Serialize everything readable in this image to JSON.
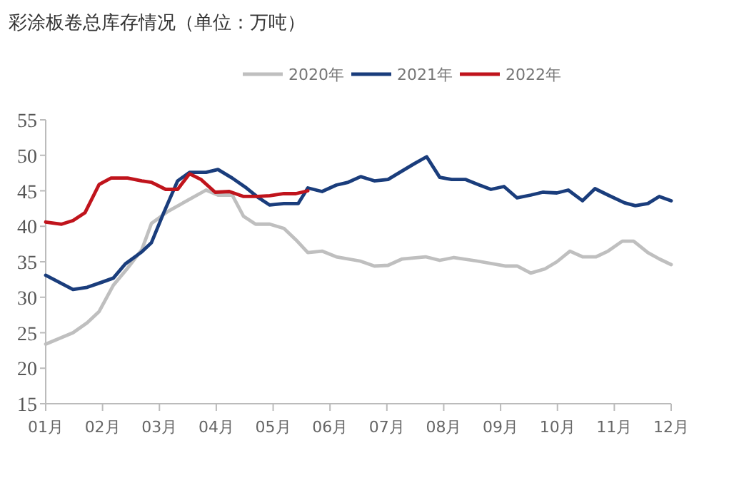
{
  "chart_data": {
    "type": "line",
    "title": "彩涂板卷总库存情况（单位：万吨）",
    "xlim": [
      1,
      12
    ],
    "xticks": [
      {
        "value": 1,
        "label": "01月"
      },
      {
        "value": 2,
        "label": "02月"
      },
      {
        "value": 3,
        "label": "03月"
      },
      {
        "value": 4,
        "label": "04月"
      },
      {
        "value": 5,
        "label": "05月"
      },
      {
        "value": 6,
        "label": "06月"
      },
      {
        "value": 7,
        "label": "07月"
      },
      {
        "value": 8,
        "label": "08月"
      },
      {
        "value": 9,
        "label": "09月"
      },
      {
        "value": 10,
        "label": "10月"
      },
      {
        "value": 11,
        "label": "11月"
      },
      {
        "value": 12,
        "label": "12月"
      }
    ],
    "ylim": [
      15,
      55
    ],
    "yticks": [
      15,
      20,
      25,
      30,
      35,
      40,
      45,
      50,
      55
    ],
    "grid": false,
    "legend": "top",
    "marker": "none",
    "line_style": "solid",
    "series": [
      {
        "name": "2020年",
        "color": "#bfbfbf",
        "x": [
          1.0,
          1.48,
          1.73,
          1.94,
          2.19,
          2.44,
          2.69,
          2.86,
          3.15,
          3.53,
          3.82,
          4.03,
          4.28,
          4.48,
          4.69,
          4.94,
          5.19,
          5.4,
          5.61,
          5.86,
          6.11,
          6.53,
          6.78,
          7.02,
          7.27,
          7.68,
          7.93,
          8.18,
          8.59,
          9.08,
          9.29,
          9.53,
          9.78,
          9.99,
          10.22,
          10.44,
          10.68,
          10.89,
          11.14,
          11.34,
          11.59,
          11.79,
          12.0
        ],
        "values": [
          23.4,
          25.0,
          26.4,
          28.0,
          31.7,
          34.1,
          36.7,
          40.4,
          42.1,
          43.8,
          45.1,
          44.4,
          44.4,
          41.4,
          40.3,
          40.3,
          39.7,
          38.1,
          36.3,
          36.5,
          35.7,
          35.1,
          34.4,
          34.5,
          35.4,
          35.7,
          35.2,
          35.6,
          35.1,
          34.4,
          34.4,
          33.4,
          34.0,
          35.0,
          36.5,
          35.7,
          35.7,
          36.5,
          37.9,
          37.9,
          36.3,
          35.4,
          34.6
        ]
      },
      {
        "name": "2021年",
        "color": "#1a3d7c",
        "x": [
          1.0,
          1.48,
          1.73,
          1.98,
          2.19,
          2.4,
          2.69,
          2.86,
          3.07,
          3.32,
          3.53,
          3.82,
          4.03,
          4.28,
          4.53,
          4.73,
          4.94,
          5.19,
          5.44,
          5.61,
          5.86,
          6.11,
          6.32,
          6.54,
          6.78,
          7.02,
          7.27,
          7.48,
          7.7,
          7.93,
          8.14,
          8.38,
          8.63,
          8.83,
          9.06,
          9.29,
          9.53,
          9.74,
          9.99,
          10.19,
          10.44,
          10.66,
          10.89,
          11.18,
          11.37,
          11.59,
          11.79,
          12.0
        ],
        "values": [
          33.1,
          31.1,
          31.4,
          32.1,
          32.7,
          34.7,
          36.4,
          37.7,
          41.8,
          46.4,
          47.6,
          47.6,
          48.0,
          46.8,
          45.4,
          44.1,
          43.0,
          43.2,
          43.2,
          45.4,
          44.9,
          45.8,
          46.2,
          47.0,
          46.4,
          46.6,
          47.8,
          48.8,
          49.8,
          46.9,
          46.6,
          46.6,
          45.8,
          45.2,
          45.6,
          44.0,
          44.4,
          44.8,
          44.7,
          45.1,
          43.6,
          45.3,
          44.4,
          43.3,
          42.9,
          43.2,
          44.2,
          43.6
        ]
      },
      {
        "name": "2022年",
        "color": "#c0141c",
        "x": [
          1.0,
          1.28,
          1.48,
          1.69,
          1.94,
          2.15,
          2.44,
          2.69,
          2.86,
          3.11,
          3.32,
          3.53,
          3.73,
          3.98,
          4.23,
          4.48,
          4.73,
          4.94,
          5.19,
          5.4,
          5.61
        ],
        "values": [
          40.6,
          40.3,
          40.8,
          41.9,
          45.9,
          46.8,
          46.8,
          46.4,
          46.2,
          45.2,
          45.2,
          47.4,
          46.6,
          44.8,
          44.9,
          44.2,
          44.2,
          44.3,
          44.6,
          44.6,
          45.0
        ]
      }
    ]
  }
}
